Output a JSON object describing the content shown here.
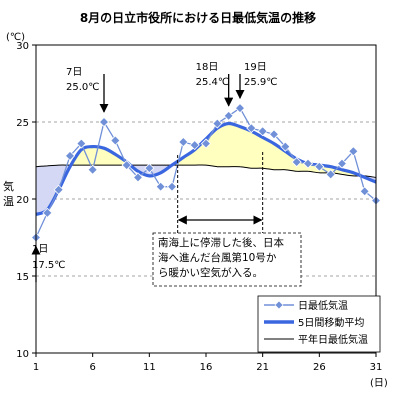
{
  "chart_data": {
    "type": "line",
    "title": "8月の日立市役所における日最低気温の推移",
    "ylabel": "気温",
    "yunit": "(℃)",
    "xunit": "(日)",
    "ylim": [
      10,
      30
    ],
    "xlim": [
      1,
      31
    ],
    "yticks": [
      10,
      15,
      20,
      25,
      30
    ],
    "xticks": [
      1,
      6,
      11,
      16,
      21,
      26,
      31
    ],
    "grid": "horizontal-dashed",
    "legend_position": "bottom-right",
    "x": [
      1,
      2,
      3,
      4,
      5,
      6,
      7,
      8,
      9,
      10,
      11,
      12,
      13,
      14,
      15,
      16,
      17,
      18,
      19,
      20,
      21,
      22,
      23,
      24,
      25,
      26,
      27,
      28,
      29,
      30,
      31
    ],
    "series": [
      {
        "name": "日最低気温",
        "color": "#7090d8",
        "marker": "diamond",
        "values": [
          17.5,
          19.1,
          20.6,
          22.8,
          23.6,
          21.9,
          25.0,
          23.8,
          22.2,
          21.4,
          22.0,
          20.8,
          20.8,
          23.7,
          23.5,
          23.6,
          24.9,
          25.4,
          25.9,
          24.6,
          24.4,
          24.2,
          23.4,
          22.4,
          22.3,
          22.1,
          21.6,
          22.3,
          23.1,
          20.5,
          19.9
        ]
      },
      {
        "name": "5日間移動平均",
        "color": "#3a66e0",
        "values": [
          19.0,
          19.3,
          20.6,
          22.1,
          23.2,
          23.4,
          23.3,
          22.9,
          22.4,
          21.8,
          21.5,
          21.7,
          22.2,
          22.7,
          23.2,
          23.9,
          24.6,
          24.9,
          24.7,
          24.4,
          24.0,
          23.6,
          23.1,
          22.6,
          22.3,
          22.2,
          22.1,
          21.9,
          21.7,
          21.4,
          21.1
        ]
      },
      {
        "name": "平年日最低気温",
        "color": "#000000",
        "values": [
          22.1,
          22.15,
          22.2,
          22.2,
          22.2,
          22.2,
          22.2,
          22.2,
          22.2,
          22.2,
          22.2,
          22.2,
          22.2,
          22.2,
          22.2,
          22.2,
          22.1,
          22.1,
          22.1,
          22.0,
          22.0,
          21.9,
          21.9,
          21.8,
          21.8,
          21.7,
          21.7,
          21.6,
          21.5,
          21.5,
          21.4
        ]
      }
    ],
    "fill": {
      "above_color": "#ffffc0",
      "below_color": "#d4d8f4"
    },
    "annotations": [
      {
        "x": 1,
        "y": 17.5,
        "day": "1日",
        "temp": "17.5℃",
        "arrow": "up"
      },
      {
        "x": 7,
        "y": 25.0,
        "day": "7日",
        "temp": "25.0℃",
        "arrow": "down"
      },
      {
        "x": 18,
        "y": 25.4,
        "day": "18日",
        "temp": "25.4℃",
        "arrow": "down"
      },
      {
        "x": 19,
        "y": 25.9,
        "day": "19日",
        "temp": "25.9℃",
        "arrow": "down"
      }
    ],
    "period_note": {
      "x_start": 13.5,
      "x_end": 21,
      "text": "南海上に停滞した後、日本\n海へ進んだ台風第10号か\nら暖かい空気が入る。"
    }
  }
}
